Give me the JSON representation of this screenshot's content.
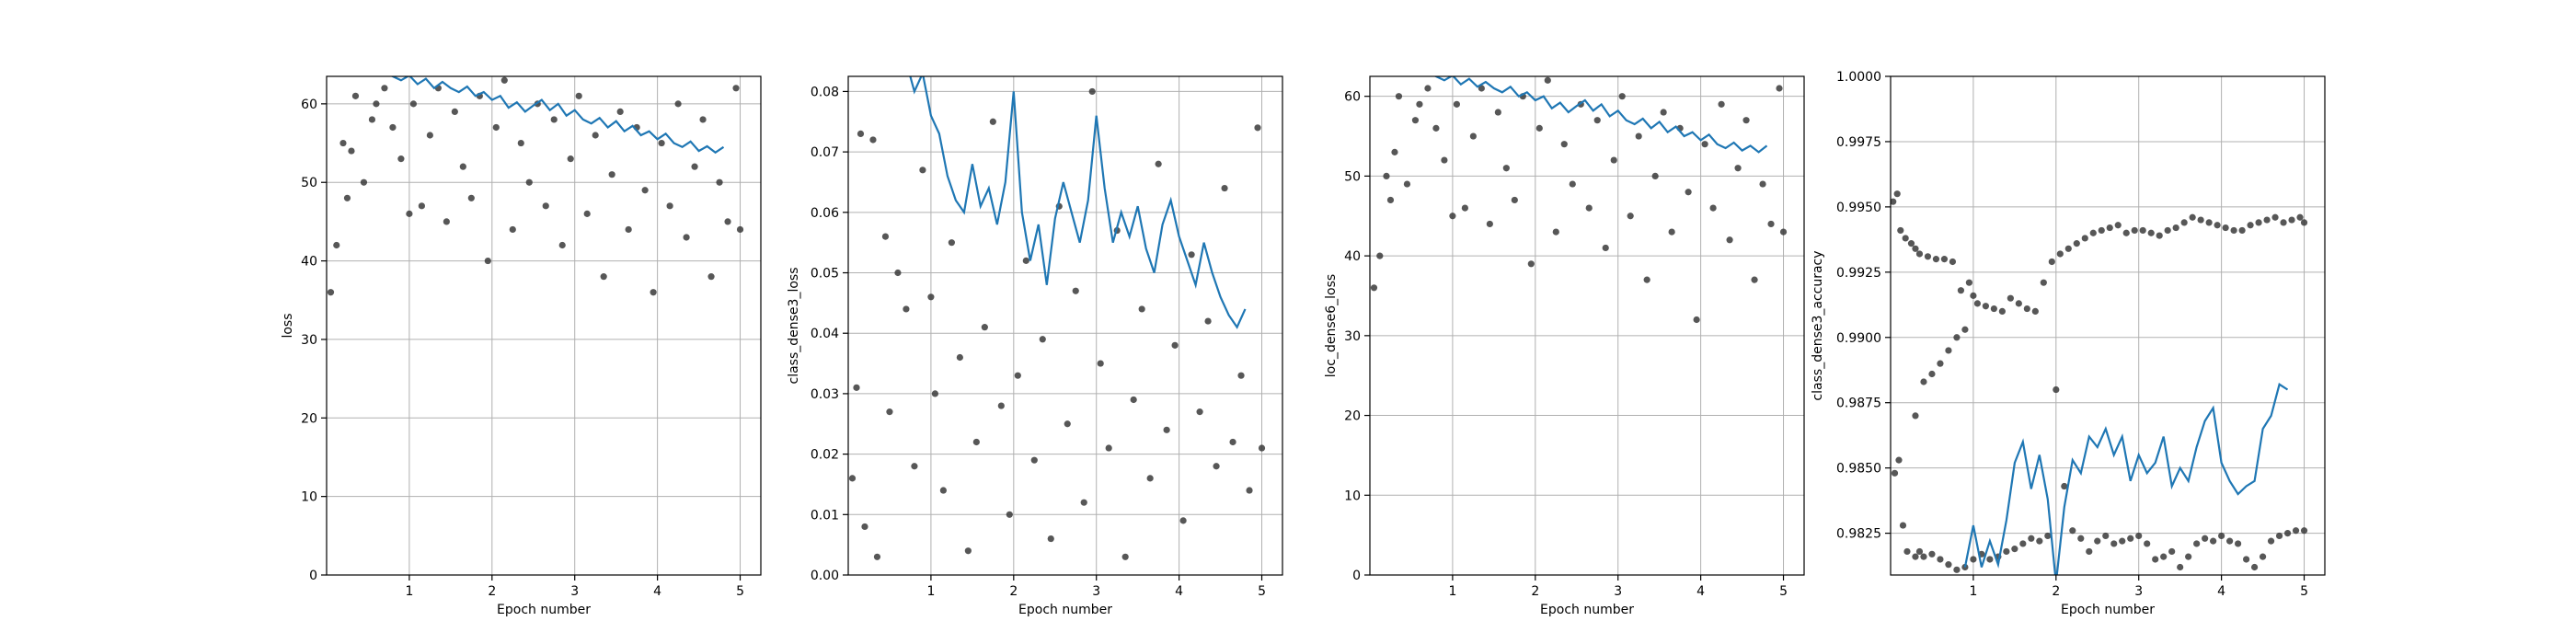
{
  "chart_data": [
    {
      "type": "scatter",
      "title": "",
      "xlabel": "Epoch number",
      "ylabel": "loss",
      "xlim": [
        0.0,
        5.25
      ],
      "ylim": [
        0,
        63.5
      ],
      "xticks": [
        1,
        2,
        3,
        4,
        5
      ],
      "yticks": [
        0,
        10,
        20,
        30,
        40,
        50,
        60
      ],
      "tick_decimals": 0,
      "grid": true,
      "series": [
        {
          "kind": "points",
          "x": [
            0.05,
            0.12,
            0.2,
            0.25,
            0.3,
            0.35,
            0.45,
            0.55,
            0.6,
            0.7,
            0.8,
            0.9,
            1.0,
            1.05,
            1.15,
            1.25,
            1.35,
            1.45,
            1.55,
            1.65,
            1.75,
            1.85,
            1.95,
            2.05,
            2.15,
            2.25,
            2.35,
            2.45,
            2.55,
            2.65,
            2.75,
            2.85,
            2.95,
            3.05,
            3.15,
            3.25,
            3.35,
            3.45,
            3.55,
            3.65,
            3.75,
            3.85,
            3.95,
            4.05,
            4.15,
            4.25,
            4.35,
            4.45,
            4.55,
            4.65,
            4.75,
            4.85,
            4.95,
            5.0
          ],
          "y": [
            36,
            42,
            55,
            48,
            54,
            61,
            50,
            58,
            60,
            62,
            57,
            53,
            46,
            60,
            47,
            56,
            62,
            45,
            59,
            52,
            48,
            61,
            40,
            57,
            63,
            44,
            55,
            50,
            60,
            47,
            58,
            42,
            53,
            61,
            46,
            56,
            38,
            51,
            59,
            44,
            57,
            49,
            36,
            55,
            47,
            60,
            43,
            52,
            58,
            38,
            50,
            45,
            62,
            44
          ]
        },
        {
          "kind": "line",
          "x": [
            0.7,
            0.8,
            0.9,
            1.0,
            1.1,
            1.2,
            1.3,
            1.4,
            1.5,
            1.6,
            1.7,
            1.8,
            1.9,
            2.0,
            2.1,
            2.2,
            2.3,
            2.4,
            2.5,
            2.6,
            2.7,
            2.8,
            2.9,
            3.0,
            3.1,
            3.2,
            3.3,
            3.4,
            3.5,
            3.6,
            3.7,
            3.8,
            3.9,
            4.0,
            4.1,
            4.2,
            4.3,
            4.4,
            4.5,
            4.6,
            4.7,
            4.8
          ],
          "y": [
            64,
            63.5,
            63,
            63.6,
            62.5,
            63.2,
            62,
            62.8,
            62,
            61.5,
            62.2,
            61,
            61.5,
            60.5,
            61,
            59.5,
            60.2,
            59,
            59.8,
            60.5,
            59.2,
            60,
            58.5,
            59.2,
            58,
            57.5,
            58.2,
            57,
            57.8,
            56.5,
            57.2,
            56,
            56.5,
            55.5,
            56.2,
            55,
            54.5,
            55.2,
            54,
            54.6,
            53.8,
            54.5
          ]
        }
      ]
    },
    {
      "type": "scatter",
      "title": "",
      "xlabel": "Epoch number",
      "ylabel": "class_dense3_loss",
      "xlim": [
        0.0,
        5.25
      ],
      "ylim": [
        0.0,
        0.0825
      ],
      "xticks": [
        1,
        2,
        3,
        4,
        5
      ],
      "yticks": [
        0.0,
        0.01,
        0.02,
        0.03,
        0.04,
        0.05,
        0.06,
        0.07,
        0.08
      ],
      "tick_decimals": 2,
      "grid": true,
      "series": [
        {
          "kind": "points",
          "x": [
            0.05,
            0.1,
            0.15,
            0.2,
            0.3,
            0.35,
            0.45,
            0.5,
            0.6,
            0.7,
            0.8,
            0.9,
            1.0,
            1.05,
            1.15,
            1.25,
            1.35,
            1.45,
            1.55,
            1.65,
            1.75,
            1.85,
            1.95,
            2.05,
            2.15,
            2.25,
            2.35,
            2.45,
            2.55,
            2.65,
            2.75,
            2.85,
            2.95,
            3.05,
            3.15,
            3.25,
            3.35,
            3.45,
            3.55,
            3.65,
            3.75,
            3.85,
            3.95,
            4.05,
            4.15,
            4.25,
            4.35,
            4.45,
            4.55,
            4.65,
            4.75,
            4.85,
            4.95,
            5.0
          ],
          "y": [
            0.016,
            0.031,
            0.073,
            0.008,
            0.072,
            0.003,
            0.056,
            0.027,
            0.05,
            0.044,
            0.018,
            0.067,
            0.046,
            0.03,
            0.014,
            0.055,
            0.036,
            0.004,
            0.022,
            0.041,
            0.075,
            0.028,
            0.01,
            0.033,
            0.052,
            0.019,
            0.039,
            0.006,
            0.061,
            0.025,
            0.047,
            0.012,
            0.08,
            0.035,
            0.021,
            0.057,
            0.003,
            0.029,
            0.044,
            0.016,
            0.068,
            0.024,
            0.038,
            0.009,
            0.053,
            0.027,
            0.042,
            0.018,
            0.064,
            0.022,
            0.033,
            0.014,
            0.074,
            0.021
          ]
        },
        {
          "kind": "line",
          "x": [
            0.7,
            0.8,
            0.9,
            1.0,
            1.1,
            1.2,
            1.3,
            1.4,
            1.5,
            1.6,
            1.7,
            1.8,
            1.9,
            2.0,
            2.1,
            2.2,
            2.3,
            2.4,
            2.5,
            2.6,
            2.7,
            2.8,
            2.9,
            3.0,
            3.1,
            3.2,
            3.3,
            3.4,
            3.5,
            3.6,
            3.7,
            3.8,
            3.9,
            4.0,
            4.1,
            4.2,
            4.3,
            4.4,
            4.5,
            4.6,
            4.7,
            4.8
          ],
          "y": [
            0.085,
            0.08,
            0.083,
            0.076,
            0.073,
            0.066,
            0.062,
            0.06,
            0.068,
            0.061,
            0.064,
            0.058,
            0.065,
            0.08,
            0.06,
            0.052,
            0.058,
            0.048,
            0.059,
            0.065,
            0.06,
            0.055,
            0.062,
            0.076,
            0.064,
            0.055,
            0.06,
            0.056,
            0.061,
            0.054,
            0.05,
            0.058,
            0.062,
            0.056,
            0.052,
            0.048,
            0.055,
            0.05,
            0.046,
            0.043,
            0.041,
            0.044
          ]
        }
      ]
    },
    {
      "type": "scatter",
      "title": "",
      "xlabel": "Epoch number",
      "ylabel": "loc_dense6_loss",
      "xlim": [
        0.0,
        5.25
      ],
      "ylim": [
        0,
        62.5
      ],
      "xticks": [
        1,
        2,
        3,
        4,
        5
      ],
      "yticks": [
        0,
        10,
        20,
        30,
        40,
        50,
        60
      ],
      "tick_decimals": 0,
      "grid": true,
      "series": [
        {
          "kind": "points",
          "x": [
            0.05,
            0.12,
            0.2,
            0.25,
            0.3,
            0.35,
            0.45,
            0.55,
            0.6,
            0.7,
            0.8,
            0.9,
            1.0,
            1.05,
            1.15,
            1.25,
            1.35,
            1.45,
            1.55,
            1.65,
            1.75,
            1.85,
            1.95,
            2.05,
            2.15,
            2.25,
            2.35,
            2.45,
            2.55,
            2.65,
            2.75,
            2.85,
            2.95,
            3.05,
            3.15,
            3.25,
            3.35,
            3.45,
            3.55,
            3.65,
            3.75,
            3.85,
            3.95,
            4.05,
            4.15,
            4.25,
            4.35,
            4.45,
            4.55,
            4.65,
            4.75,
            4.85,
            4.95,
            5.0
          ],
          "y": [
            36,
            40,
            50,
            47,
            53,
            60,
            49,
            57,
            59,
            61,
            56,
            52,
            45,
            59,
            46,
            55,
            61,
            44,
            58,
            51,
            47,
            60,
            39,
            56,
            62,
            43,
            54,
            49,
            59,
            46,
            57,
            41,
            52,
            60,
            45,
            55,
            37,
            50,
            58,
            43,
            56,
            48,
            32,
            54,
            46,
            59,
            42,
            51,
            57,
            37,
            49,
            44,
            61,
            43
          ]
        },
        {
          "kind": "line",
          "x": [
            0.7,
            0.8,
            0.9,
            1.0,
            1.1,
            1.2,
            1.3,
            1.4,
            1.5,
            1.6,
            1.7,
            1.8,
            1.9,
            2.0,
            2.1,
            2.2,
            2.3,
            2.4,
            2.5,
            2.6,
            2.7,
            2.8,
            2.9,
            3.0,
            3.1,
            3.2,
            3.3,
            3.4,
            3.5,
            3.6,
            3.7,
            3.8,
            3.9,
            4.0,
            4.1,
            4.2,
            4.3,
            4.4,
            4.5,
            4.6,
            4.7,
            4.8
          ],
          "y": [
            63,
            62.5,
            62,
            62.6,
            61.5,
            62.2,
            61.2,
            61.8,
            61,
            60.5,
            61.2,
            60,
            60.5,
            59.5,
            60,
            58.5,
            59.2,
            58,
            58.8,
            59.5,
            58.2,
            59,
            57.5,
            58.2,
            57,
            56.5,
            57.2,
            56,
            56.8,
            55.5,
            56.2,
            55,
            55.5,
            54.5,
            55.2,
            54,
            53.5,
            54.2,
            53.2,
            53.8,
            53,
            53.8
          ]
        }
      ]
    },
    {
      "type": "scatter",
      "title": "",
      "xlabel": "Epoch number",
      "ylabel": "class_dense3_accuracy",
      "xlim": [
        0.0,
        5.25
      ],
      "ylim": [
        0.9809,
        1.0
      ],
      "xticks": [
        1,
        2,
        3,
        4,
        5
      ],
      "yticks": [
        0.9825,
        0.985,
        0.9875,
        0.99,
        0.9925,
        0.995,
        0.9975,
        1.0
      ],
      "tick_decimals": 4,
      "grid": true,
      "series": [
        {
          "kind": "points",
          "x": [
            0.03,
            0.08,
            0.12,
            0.18,
            0.25,
            0.3,
            0.35,
            0.45,
            0.55,
            0.65,
            0.75,
            0.85,
            0.95,
            1.0,
            1.05,
            1.15,
            1.25,
            1.35,
            1.45,
            1.55,
            1.65,
            1.75,
            1.85,
            1.95,
            2.05,
            2.15,
            2.25,
            2.35,
            2.45,
            2.55,
            2.65,
            2.75,
            2.85,
            2.95,
            3.05,
            3.15,
            3.25,
            3.35,
            3.45,
            3.55,
            3.65,
            3.75,
            3.85,
            3.95,
            4.05,
            4.15,
            4.25,
            4.35,
            4.45,
            4.55,
            4.65,
            4.75,
            4.85,
            4.95,
            5.0
          ],
          "y": [
            0.9952,
            0.9955,
            0.9941,
            0.9938,
            0.9936,
            0.9934,
            0.9932,
            0.9931,
            0.993,
            0.993,
            0.9929,
            0.9918,
            0.9921,
            0.9916,
            0.9913,
            0.9912,
            0.9911,
            0.991,
            0.9915,
            0.9913,
            0.9911,
            0.991,
            0.9921,
            0.9929,
            0.9932,
            0.9934,
            0.9936,
            0.9938,
            0.994,
            0.9941,
            0.9942,
            0.9943,
            0.994,
            0.9941,
            0.9941,
            0.994,
            0.9939,
            0.9941,
            0.9942,
            0.9944,
            0.9946,
            0.9945,
            0.9944,
            0.9943,
            0.9942,
            0.9941,
            0.9941,
            0.9943,
            0.9944,
            0.9945,
            0.9946,
            0.9944,
            0.9945,
            0.9946,
            0.9944
          ]
        },
        {
          "kind": "points",
          "x": [
            0.05,
            0.1,
            0.15,
            0.2,
            0.3,
            0.35,
            0.4,
            0.5,
            0.6,
            0.7,
            0.8,
            0.9,
            1.0,
            1.1,
            1.2,
            1.3,
            1.4,
            1.5,
            1.6,
            1.7,
            1.8,
            1.9,
            2.0,
            2.1,
            2.2,
            2.3,
            2.4,
            2.5,
            2.6,
            2.7,
            2.8,
            2.9,
            3.0,
            3.1,
            3.2,
            3.3,
            3.4,
            3.5,
            3.6,
            3.7,
            3.8,
            3.9,
            4.0,
            4.1,
            4.2,
            4.3,
            4.4,
            4.5,
            4.6,
            4.7,
            4.8,
            4.9,
            5.0
          ],
          "y": [
            0.9848,
            0.9853,
            0.9828,
            0.9818,
            0.9816,
            0.9818,
            0.9816,
            0.9817,
            0.9815,
            0.9813,
            0.9811,
            0.9812,
            0.9815,
            0.9817,
            0.9815,
            0.9816,
            0.9818,
            0.9819,
            0.9821,
            0.9823,
            0.9822,
            0.9824,
            0.988,
            0.9843,
            0.9826,
            0.9823,
            0.9818,
            0.9822,
            0.9824,
            0.9821,
            0.9822,
            0.9823,
            0.9824,
            0.9821,
            0.9815,
            0.9816,
            0.9818,
            0.9812,
            0.9816,
            0.9821,
            0.9823,
            0.9822,
            0.9824,
            0.9822,
            0.9821,
            0.9815,
            0.9812,
            0.9816,
            0.9822,
            0.9824,
            0.9825,
            0.9826,
            0.9826
          ]
        },
        {
          "kind": "points",
          "x": [
            0.3,
            0.4,
            0.5,
            0.6,
            0.7,
            0.8,
            0.9
          ],
          "y": [
            0.987,
            0.9883,
            0.9886,
            0.989,
            0.9895,
            0.99,
            0.9903
          ]
        },
        {
          "kind": "line",
          "x": [
            0.9,
            1.0,
            1.1,
            1.2,
            1.3,
            1.4,
            1.5,
            1.6,
            1.7,
            1.8,
            1.9,
            2.0,
            2.1,
            2.2,
            2.3,
            2.4,
            2.5,
            2.6,
            2.7,
            2.8,
            2.9,
            3.0,
            3.1,
            3.2,
            3.3,
            3.4,
            3.5,
            3.6,
            3.7,
            3.8,
            3.9,
            4.0,
            4.1,
            4.2,
            4.3,
            4.4,
            4.5,
            4.6,
            4.7,
            4.8
          ],
          "y": [
            0.9812,
            0.9828,
            0.9812,
            0.9822,
            0.9813,
            0.983,
            0.9852,
            0.986,
            0.9842,
            0.9855,
            0.9838,
            0.9806,
            0.9835,
            0.9853,
            0.9848,
            0.9862,
            0.9858,
            0.9865,
            0.9855,
            0.9862,
            0.9845,
            0.9855,
            0.9848,
            0.9852,
            0.9862,
            0.9843,
            0.985,
            0.9845,
            0.9858,
            0.9868,
            0.9873,
            0.9852,
            0.9845,
            0.984,
            0.9843,
            0.9845,
            0.9865,
            0.987,
            0.9882,
            0.988
          ]
        }
      ]
    }
  ]
}
